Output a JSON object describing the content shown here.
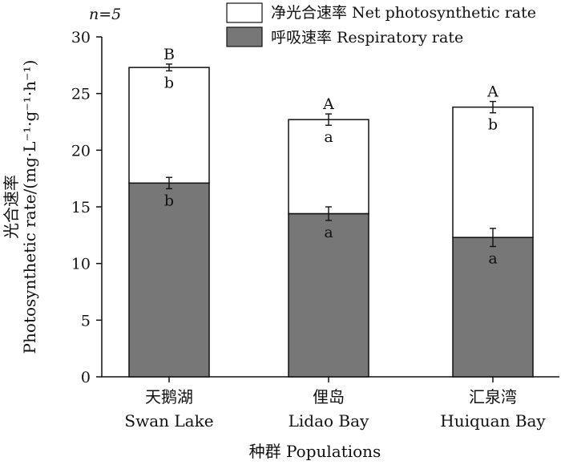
{
  "chart_data": {
    "type": "stacked-bar",
    "sample_label": "n=5",
    "xlabel": "种群 Populations",
    "ylabel_line1": "光合速率",
    "ylabel_line2": "Photosynthetic rate/(mg·L⁻¹·g⁻¹·h⁻¹)",
    "ylim": [
      0,
      30
    ],
    "yticks": [
      0,
      5,
      10,
      15,
      20,
      25,
      30
    ],
    "legend_position": "top-right",
    "categories": [
      {
        "zh": "天鹅湖",
        "en": "Swan Lake"
      },
      {
        "zh": "俚岛",
        "en": "Lidao Bay"
      },
      {
        "zh": "汇泉湾",
        "en": "Huiquan Bay"
      }
    ],
    "series": [
      {
        "name": "呼吸速率 Respiratory rate",
        "color": "#777777",
        "values": [
          17.1,
          14.4,
          12.3
        ],
        "errors": [
          0.5,
          0.6,
          0.8
        ],
        "letters": [
          "b",
          "a",
          "a"
        ]
      },
      {
        "name": "净光合速率 Net photosynthetic rate",
        "color": "#ffffff",
        "values": [
          10.2,
          8.3,
          11.5
        ],
        "errors": [
          0.3,
          0.5,
          0.5
        ],
        "letters": [
          "b",
          "a",
          "b"
        ]
      }
    ],
    "total_letters": [
      "B",
      "A",
      "A"
    ]
  }
}
